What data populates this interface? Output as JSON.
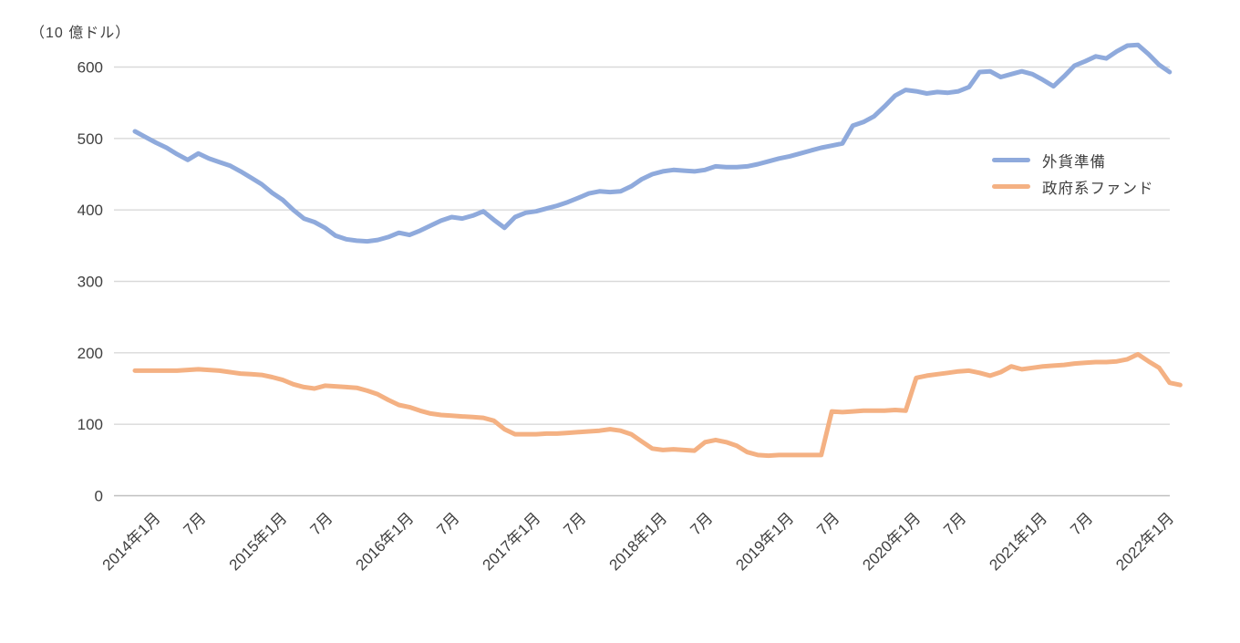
{
  "chart": {
    "unit_label": "（10 億ドル）",
    "legend": [
      {
        "label": "外貨準備",
        "color": "#8FAADC"
      },
      {
        "label": "政府系ファンド",
        "color": "#F4B183"
      }
    ],
    "gridline_color": "#D9D9D9",
    "axis_line_color": "#BFBFBF",
    "tick_label_color": "#404040"
  },
  "chart_data": {
    "type": "line",
    "title": "",
    "ylabel": "（10 億ドル）",
    "xlabel": "",
    "ylim": [
      0,
      600
    ],
    "y_ticks": [
      0,
      100,
      200,
      300,
      400,
      500,
      600
    ],
    "grid": "horizontal",
    "legend_position": "inside-right",
    "x_cadence": "monthly",
    "x_start": "2014-01",
    "x_tick_every_months": 6,
    "x_tick_labels": [
      "2014年1月",
      "7月",
      "2015年1月",
      "7月",
      "2016年1月",
      "7月",
      "2017年1月",
      "7月",
      "2018年1月",
      "7月",
      "2019年1月",
      "7月",
      "2020年1月",
      "7月",
      "2021年1月",
      "7月",
      "2022年1月"
    ],
    "series": [
      {
        "name": "外貨準備",
        "color": "#8FAADC",
        "start": "2014-01",
        "end": "2022-03",
        "values": [
          510,
          502,
          494,
          487,
          478,
          470,
          479,
          472,
          467,
          462,
          454,
          445,
          436,
          424,
          414,
          400,
          388,
          383,
          375,
          364,
          359,
          357,
          356,
          358,
          362,
          368,
          365,
          371,
          378,
          385,
          390,
          388,
          392,
          398,
          386,
          375,
          390,
          396,
          398,
          402,
          406,
          411,
          417,
          423,
          426,
          425,
          426,
          433,
          443,
          450,
          454,
          456,
          455,
          454,
          456,
          461,
          460,
          460,
          461,
          464,
          468,
          472,
          475,
          479,
          483,
          487,
          490,
          493,
          518,
          523,
          531,
          545,
          560,
          568,
          566,
          563,
          565,
          564,
          566,
          572,
          593,
          594,
          586,
          590,
          594,
          590,
          582,
          573,
          587,
          602,
          608,
          615,
          612,
          622,
          630,
          631,
          618,
          603,
          593
        ]
      },
      {
        "name": "政府系ファンド",
        "color": "#F4B183",
        "start": "2014-01",
        "end": "2022-04",
        "values": [
          175,
          175,
          175,
          175,
          175,
          176,
          177,
          176,
          175,
          173,
          171,
          170,
          169,
          166,
          162,
          156,
          152,
          150,
          154,
          153,
          152,
          151,
          147,
          142,
          134,
          127,
          124,
          119,
          115,
          113,
          112,
          111,
          110,
          109,
          105,
          93,
          86,
          86,
          86,
          87,
          87,
          88,
          89,
          90,
          91,
          93,
          91,
          86,
          76,
          66,
          64,
          65,
          64,
          63,
          75,
          78,
          75,
          70,
          61,
          57,
          56,
          57,
          57,
          57,
          57,
          57,
          118,
          117,
          118,
          119,
          119,
          119,
          120,
          119,
          165,
          168,
          170,
          172,
          174,
          175,
          172,
          168,
          173,
          181,
          177,
          179,
          181,
          182,
          183,
          185,
          186,
          187,
          187,
          188,
          191,
          198,
          188,
          179,
          158,
          155
        ]
      }
    ]
  }
}
